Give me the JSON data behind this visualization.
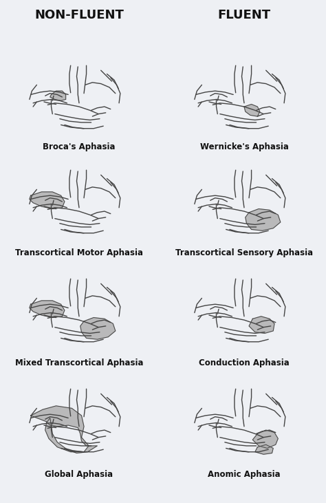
{
  "title_left": "NON-FLUENT",
  "title_right": "FLUENT",
  "background_color": "#eef0f4",
  "brain_outline_color": "#444444",
  "highlight_color": "#b0b0b0",
  "label_color": "#111111",
  "labels": [
    [
      "Broca's Aphasia",
      "Wernicke's Aphasia"
    ],
    [
      "Transcortical Motor Aphasia",
      "Transcortical Sensory Aphasia"
    ],
    [
      "Mixed Transcortical Aphasia",
      "Conduction Aphasia"
    ],
    [
      "Global Aphasia",
      "Anomic Aphasia"
    ]
  ],
  "fig_width": 4.74,
  "fig_height": 7.31,
  "dpi": 100
}
